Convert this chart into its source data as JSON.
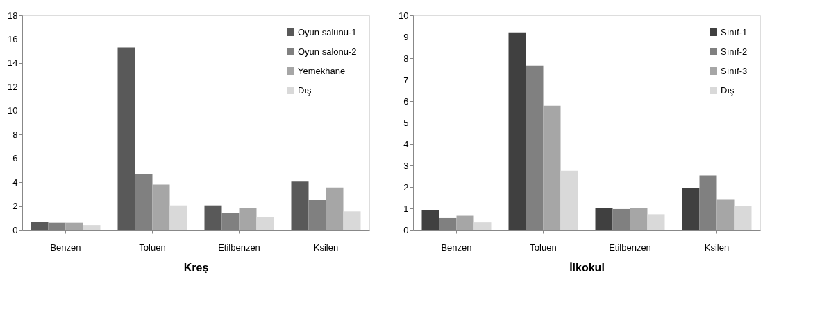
{
  "chart_data": [
    {
      "type": "bar",
      "xlabel": "Kreş",
      "categories": [
        "Benzen",
        "Toluen",
        "Etilbenzen",
        "Ksilen"
      ],
      "ylim": [
        0,
        18
      ],
      "yticks": [
        0,
        2,
        4,
        6,
        8,
        10,
        12,
        14,
        16,
        18
      ],
      "grid": false,
      "legend": "top right",
      "series": [
        {
          "name": "Oyun salunu-1",
          "color": "#595959",
          "values": [
            0.65,
            15.3,
            2.05,
            4.05
          ]
        },
        {
          "name": "Oyun salonu-2",
          "color": "#808080",
          "values": [
            0.6,
            4.7,
            1.45,
            2.5
          ]
        },
        {
          "name": "Yemekhane",
          "color": "#a6a6a6",
          "values": [
            0.6,
            3.8,
            1.8,
            3.55
          ]
        },
        {
          "name": "Dış",
          "color": "#d9d9d9",
          "values": [
            0.4,
            2.05,
            1.05,
            1.55
          ]
        }
      ]
    },
    {
      "type": "bar",
      "xlabel": "İlkokul",
      "categories": [
        "Benzen",
        "Toluen",
        "Etilbenzen",
        "Ksilen"
      ],
      "ylim": [
        0,
        10
      ],
      "yticks": [
        0,
        1,
        2,
        3,
        4,
        5,
        6,
        7,
        8,
        9,
        10
      ],
      "grid": false,
      "legend": "top right",
      "series": [
        {
          "name": "Sınıf-1",
          "color": "#404040",
          "values": [
            0.93,
            9.2,
            1.0,
            1.95
          ]
        },
        {
          "name": "Sınıf-2",
          "color": "#808080",
          "values": [
            0.55,
            7.65,
            0.97,
            2.53
          ]
        },
        {
          "name": "Sınıf-3",
          "color": "#a6a6a6",
          "values": [
            0.66,
            5.78,
            1.0,
            1.4
          ]
        },
        {
          "name": "Dış",
          "color": "#d9d9d9",
          "values": [
            0.35,
            2.75,
            0.73,
            1.12
          ]
        }
      ]
    }
  ]
}
